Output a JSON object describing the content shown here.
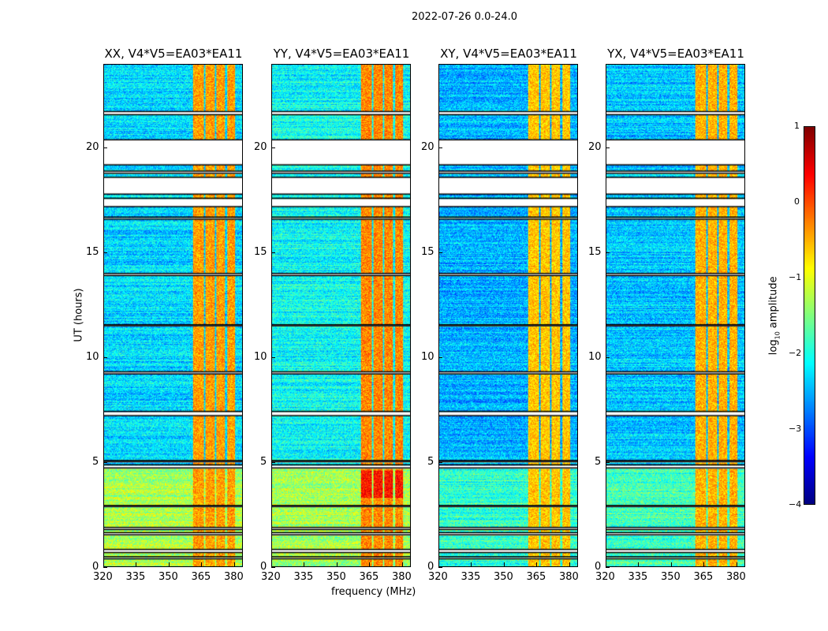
{
  "chart_data": {
    "type": "heatmap",
    "title": "2022-07-26 0.0-24.0",
    "xlabel": "frequency (MHz)",
    "ylabel": "UT (hours)",
    "xlim": [
      320,
      384
    ],
    "ylim": [
      0,
      24
    ],
    "xticks": [
      320,
      335,
      350,
      365,
      380
    ],
    "yticks": [
      0,
      5,
      10,
      15,
      20
    ],
    "panels": [
      {
        "title": "XX, V4*V5=EA03*EA11",
        "background_level": -2.3,
        "early_level": -1.3,
        "rfi_level": -0.4
      },
      {
        "title": "YY, V4*V5=EA03*EA11",
        "background_level": -2.1,
        "early_level": -1.3,
        "rfi_level": -0.3
      },
      {
        "title": "XY, V4*V5=EA03*EA11",
        "background_level": -2.5,
        "early_level": -1.9,
        "rfi_level": -0.6
      },
      {
        "title": "YX, V4*V5=EA03*EA11",
        "background_level": -2.4,
        "early_level": -1.8,
        "rfi_level": -0.5
      }
    ],
    "rfi_bands_mhz": [
      [
        361,
        366
      ],
      [
        367,
        371
      ],
      [
        372,
        376
      ],
      [
        377,
        380.5
      ]
    ],
    "flagged_hours": [
      [
        0.35,
        0.45
      ],
      [
        0.65,
        0.8
      ],
      [
        1.5,
        1.6
      ],
      [
        1.75,
        1.85
      ],
      [
        2.85,
        2.9
      ],
      [
        4.7,
        4.85
      ],
      [
        5.0,
        5.05
      ],
      [
        7.2,
        7.4
      ],
      [
        9.2,
        9.3
      ],
      [
        11.5,
        11.55
      ],
      [
        13.9,
        14.0
      ],
      [
        16.6,
        16.7
      ],
      [
        17.2,
        17.6
      ],
      [
        17.8,
        18.6
      ],
      [
        18.8,
        18.9
      ],
      [
        19.2,
        20.4
      ],
      [
        21.6,
        21.75
      ]
    ],
    "colorbar": {
      "label": "log10 amplitude",
      "label_main": "log",
      "label_sub": "10",
      "label_rest": " amplitude",
      "range": [
        -4,
        1
      ],
      "ticks": [
        "1",
        "0",
        "−1",
        "−2",
        "−3",
        "−4"
      ],
      "colormap": "jet"
    }
  }
}
